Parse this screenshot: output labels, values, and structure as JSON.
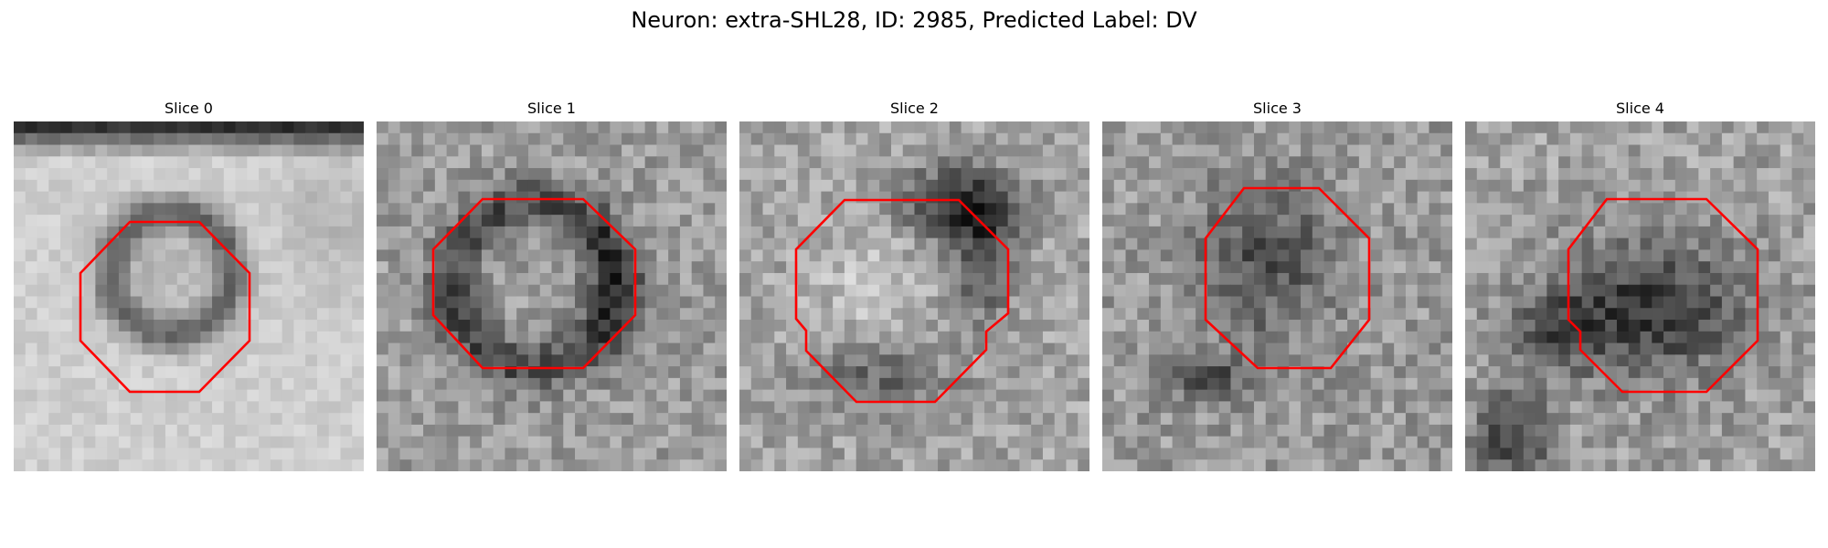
{
  "figure": {
    "title": "Neuron: extra-SHL28, ID: 2985, Predicted Label: DV",
    "outline_color": "#ff0000",
    "colormap": "gray"
  },
  "panels": [
    {
      "title": "Slice 0"
    },
    {
      "title": "Slice 1"
    },
    {
      "title": "Slice 2"
    },
    {
      "title": "Slice 3"
    },
    {
      "title": "Slice 4"
    }
  ]
}
